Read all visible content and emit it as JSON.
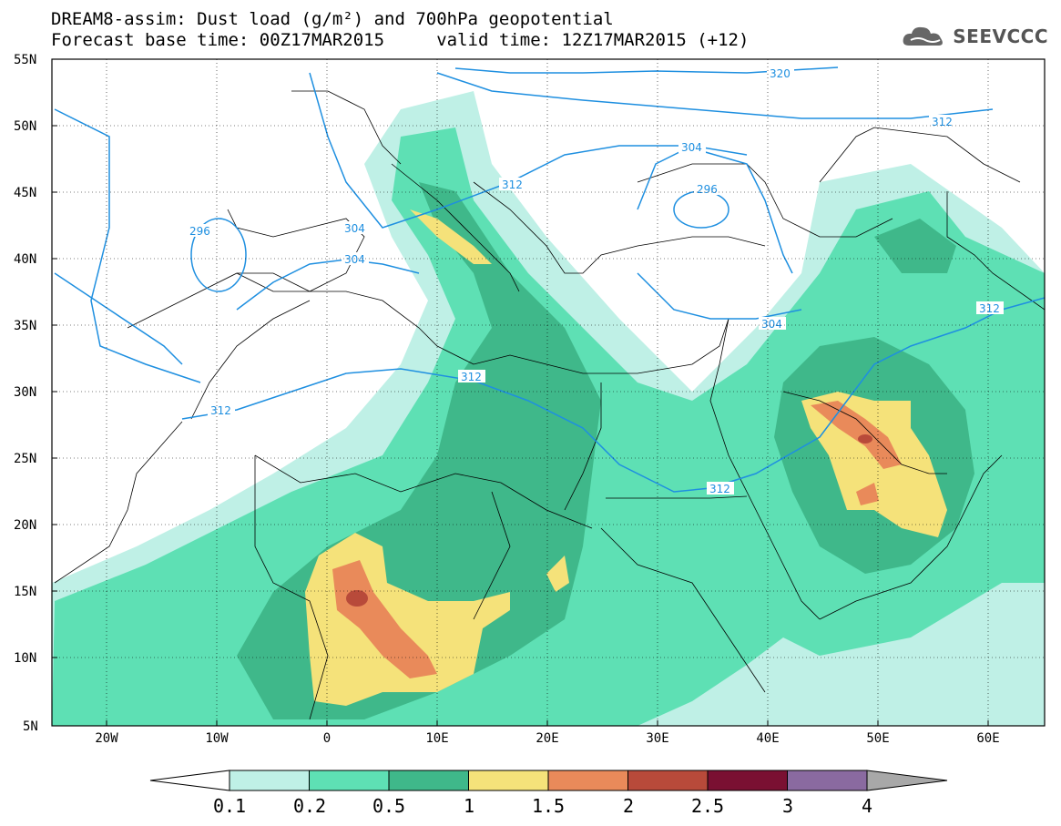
{
  "title": {
    "line1": "DREAM8-assim: Dust load (g/m²) and 700hPa geopotential",
    "line2": "Forecast base time: 00Z17MAR2015     valid time: 12Z17MAR2015 (+12)"
  },
  "logo": {
    "text": "SEEVCCC",
    "icon": "cloud-icon"
  },
  "map": {
    "lon_range": [
      -25,
      65
    ],
    "lat_range": [
      5,
      55
    ],
    "lat_ticks": [
      "55N",
      "50N",
      "45N",
      "40N",
      "35N",
      "30N",
      "25N",
      "20N",
      "15N",
      "10N",
      "5N"
    ],
    "lon_ticks": [
      "20W",
      "10W",
      "0",
      "10E",
      "20E",
      "30E",
      "40E",
      "50E",
      "60E"
    ],
    "contour_color": "#1e8fe0",
    "contour_labels": [
      "320",
      "312",
      "304",
      "296",
      "296",
      "304",
      "304",
      "312",
      "312",
      "312",
      "304",
      "312"
    ]
  },
  "colorbar": {
    "labels": [
      "0.1",
      "0.2",
      "0.5",
      "1",
      "1.5",
      "2",
      "2.5",
      "3",
      "4"
    ],
    "colors": [
      "#bff0e6",
      "#5ee0b4",
      "#3fb88a",
      "#f5e27a",
      "#e98a5a",
      "#b84a3a",
      "#7a1032",
      "#8a6aa0",
      "#a8a8a8"
    ]
  }
}
